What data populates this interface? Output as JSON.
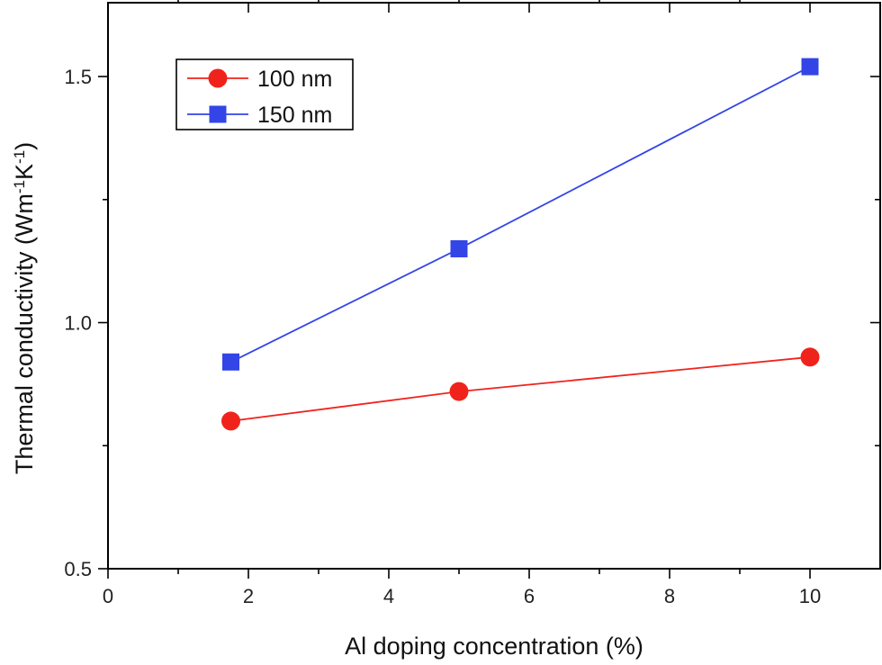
{
  "chart_data": {
    "type": "line",
    "xlabel": "Al doping concentration (%)",
    "ylabel": {
      "prefix": "Thermal conductivity (Wm",
      "sup1": "-1",
      "mid": "K",
      "sup2": "-1",
      "suffix": ")"
    },
    "xlim": [
      0,
      11
    ],
    "ylim": [
      0.5,
      1.65
    ],
    "xticks": [
      0,
      2,
      4,
      6,
      8,
      10
    ],
    "xtick_labels": [
      "0",
      "2",
      "4",
      "6",
      "8",
      "10"
    ],
    "yticks": [
      0.5,
      1.0,
      1.5
    ],
    "ytick_labels": [
      "0.5",
      "1.0",
      "1.5"
    ],
    "x_minor_step": 1,
    "y_minor_step": 0.25,
    "grid": false,
    "legend_position": "top-left",
    "series": [
      {
        "name": "100 nm",
        "color": "#f0231c",
        "marker": "circle",
        "x": [
          1.75,
          5,
          10
        ],
        "y": [
          0.8,
          0.86,
          0.93
        ]
      },
      {
        "name": "150 nm",
        "color": "#3345e6",
        "marker": "square",
        "x": [
          1.75,
          5,
          10
        ],
        "y": [
          0.92,
          1.15,
          1.52
        ]
      }
    ]
  }
}
